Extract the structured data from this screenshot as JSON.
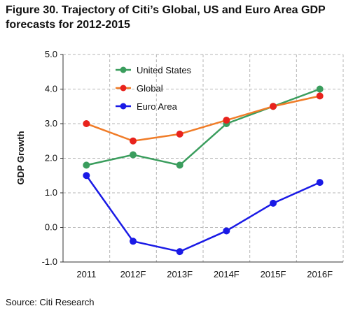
{
  "figure": {
    "title": "Figure 30. Trajectory of Citi’s Global, US and Euro Area GDP forecasts for 2012-2015",
    "source": "Source: Citi Research"
  },
  "chart_data": {
    "type": "line",
    "title": "Figure 30. Trajectory of Citi’s Global, US and Euro Area GDP forecasts for 2012-2015",
    "xlabel": "",
    "ylabel": "GDP Growth",
    "categories": [
      "2011",
      "2012F",
      "2013F",
      "2014F",
      "2015F",
      "2016F"
    ],
    "ylim": [
      -1.0,
      5.0
    ],
    "yticks": [
      "-1.0",
      "0.0",
      "1.0",
      "2.0",
      "3.0",
      "4.0",
      "5.0"
    ],
    "negative_tick_color": "#d40000",
    "grid": "dashed vertical and horizontal",
    "legend_position": "top-left",
    "series": [
      {
        "name": "United States",
        "color": "#3a9d5d",
        "values": [
          1.8,
          2.1,
          1.8,
          3.0,
          3.5,
          4.0
        ]
      },
      {
        "name": "Global",
        "color": "#f07c28",
        "marker_color": "#e8231d",
        "values": [
          3.0,
          2.5,
          2.7,
          3.1,
          3.5,
          3.8
        ]
      },
      {
        "name": "Euro Area",
        "color": "#1a1ae6",
        "values": [
          1.5,
          -0.4,
          -0.7,
          -0.1,
          0.7,
          1.3
        ]
      }
    ]
  }
}
